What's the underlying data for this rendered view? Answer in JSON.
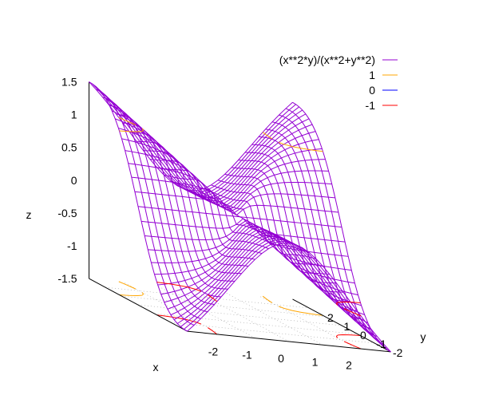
{
  "chart_data": {
    "type": "surface",
    "function": "(x**2*y)/(x**2+y**2)",
    "samples": {
      "x": [
        -3,
        -2.8,
        -2.6,
        -2.4,
        -2.2,
        -2,
        -1.8,
        -1.6,
        -1.4,
        -1.2,
        -1,
        -0.8,
        -0.6,
        -0.4,
        -0.2,
        0,
        0.2,
        0.4,
        0.6,
        0.8,
        1,
        1.2,
        1.4,
        1.6,
        1.8,
        2,
        2.2,
        2.4,
        2.6,
        2.8,
        3
      ],
      "y": [
        -3,
        -2.8,
        -2.6,
        -2.4,
        -2.2,
        -2,
        -1.8,
        -1.6,
        -1.4,
        -1.2,
        -1,
        -0.8,
        -0.6,
        -0.4,
        -0.2,
        0,
        0.2,
        0.4,
        0.6,
        0.8,
        1,
        1.2,
        1.4,
        1.6,
        1.8,
        2,
        2.2,
        2.4,
        2.6,
        2.8,
        3
      ]
    },
    "contour_levels": [
      1,
      0,
      -1
    ],
    "series": [
      {
        "name": "(x**2*y)/(x**2+y**2)",
        "color": "#9400d3"
      },
      {
        "name": "1",
        "color": "#ffa500"
      },
      {
        "name": "0",
        "color": "#0000ff"
      },
      {
        "name": "-1",
        "color": "#ff0000"
      }
    ],
    "xlabel": "x",
    "ylabel": "y",
    "zlabel": "z",
    "xlim": [
      -3,
      3
    ],
    "ylim": [
      -3,
      3
    ],
    "zlim": [
      -1.5,
      1.5
    ],
    "x_ticks": [
      "-2",
      "-1",
      "0",
      "1",
      "2"
    ],
    "y_ticks": [
      "-2",
      "-1",
      "0",
      "1",
      "2"
    ],
    "z_ticks": [
      "-1.5",
      "-1",
      "-0.5",
      "0",
      "0.5",
      "1",
      "1.5"
    ],
    "grid": true,
    "legend_position": "top-right"
  }
}
